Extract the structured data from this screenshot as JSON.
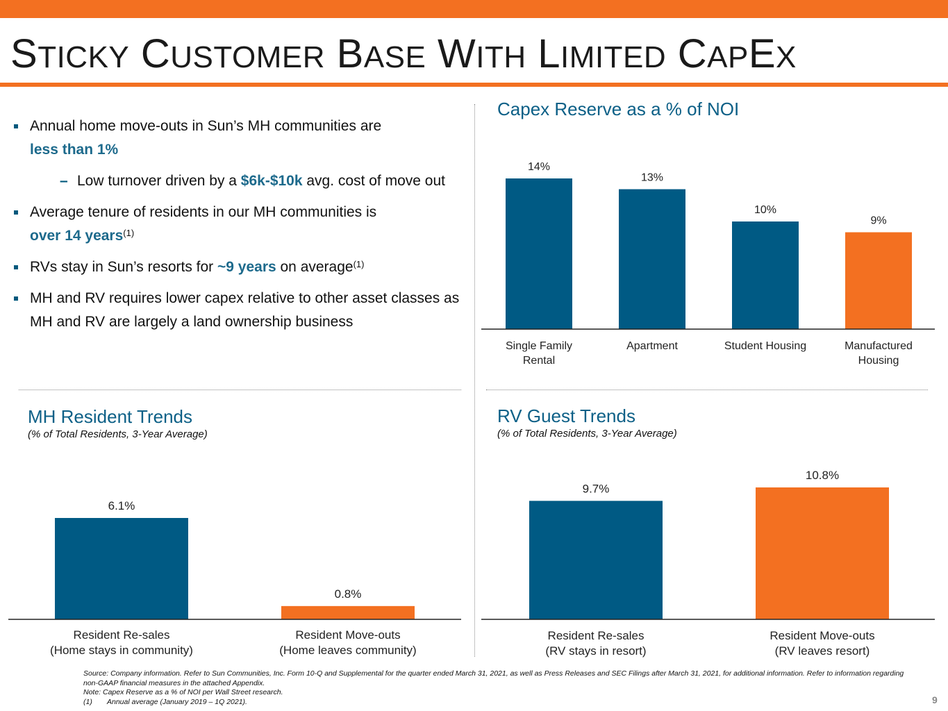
{
  "title": {
    "parts": [
      {
        "cap": "S",
        "rest": "TICKY"
      },
      {
        "cap": "C",
        "rest": "USTOMER"
      },
      {
        "cap": "B",
        "rest": "ASE"
      },
      {
        "cap": "W",
        "rest": "ITH"
      },
      {
        "cap": "L",
        "rest": "IMITED"
      },
      {
        "cap": "C",
        "rest": "AP"
      },
      {
        "cap": "E",
        "rest": "X"
      }
    ]
  },
  "bullets": {
    "b1_text": "Annual home move-outs in Sun’s MH communities are",
    "b1_highlight": "less than 1%",
    "b2_pre": "Low turnover driven by a ",
    "b2_highlight": "$6k-$10k",
    "b2_post": " avg. cost of move out",
    "b3_text": "Average tenure of residents in our MH communities is",
    "b3_highlight": "over 14 years",
    "b3_note": "(1)",
    "b4_pre": "RVs stay in Sun’s resorts for ",
    "b4_highlight": "~9 years",
    "b4_post": " on average",
    "b4_note": "(1)",
    "b5_text": "MH and RV requires lower capex relative to other asset classes as MH and RV are largely a land ownership business"
  },
  "capex": {
    "title": "Capex Reserve as a % of NOI"
  },
  "mh": {
    "title": "MH Resident Trends",
    "subtitle": "(% of Total Residents, 3-Year Average)"
  },
  "rv": {
    "title": "RV Guest Trends",
    "subtitle": "(% of Total Residents, 3-Year Average)"
  },
  "colors": {
    "blue": "#005a84",
    "orange": "#f37021"
  },
  "chart_data": [
    {
      "type": "bar",
      "title": "Capex Reserve as a % of NOI",
      "categories": [
        [
          "Single Family",
          "Rental"
        ],
        [
          "Apartment"
        ],
        [
          "Student Housing"
        ],
        [
          "Manufactured",
          "Housing"
        ]
      ],
      "values": [
        14,
        13,
        10,
        9
      ],
      "labels": [
        "14%",
        "13%",
        "10%",
        "9%"
      ],
      "bar_colors": [
        "blue",
        "blue",
        "blue",
        "orange"
      ],
      "ylim": [
        0,
        14
      ]
    },
    {
      "type": "bar",
      "title": "MH Resident Trends",
      "categories": [
        [
          "Resident Re-sales",
          "(Home stays in community)"
        ],
        [
          "Resident Move-outs",
          "(Home leaves community)"
        ]
      ],
      "values": [
        6.1,
        0.8
      ],
      "labels": [
        "6.1%",
        "0.8%"
      ],
      "bar_colors": [
        "blue",
        "orange"
      ],
      "ylim": [
        0,
        6.1
      ]
    },
    {
      "type": "bar",
      "title": "RV Guest Trends",
      "categories": [
        [
          "Resident Re-sales",
          "(RV stays in resort)"
        ],
        [
          "Resident Move-outs",
          "(RV leaves resort)"
        ]
      ],
      "values": [
        9.7,
        10.8
      ],
      "labels": [
        "9.7%",
        "10.8%"
      ],
      "bar_colors": [
        "blue",
        "orange"
      ],
      "ylim": [
        0,
        10.8
      ]
    }
  ],
  "footnote": {
    "line1": "Source: Company information. Refer to Sun Communities, Inc. Form 10-Q and Supplemental for the quarter ended March 31, 2021, as well as Press Releases and SEC Filings after March 31, 2021, for additional information. Refer to information regarding non-GAAP financial measures in the attached Appendix.",
    "line2": "Note: Capex Reserve as a % of NOI per Wall Street research.",
    "line3_num": "(1)",
    "line3_text": "Annual average (January 2019 – 1Q 2021)."
  },
  "page_number": "9"
}
